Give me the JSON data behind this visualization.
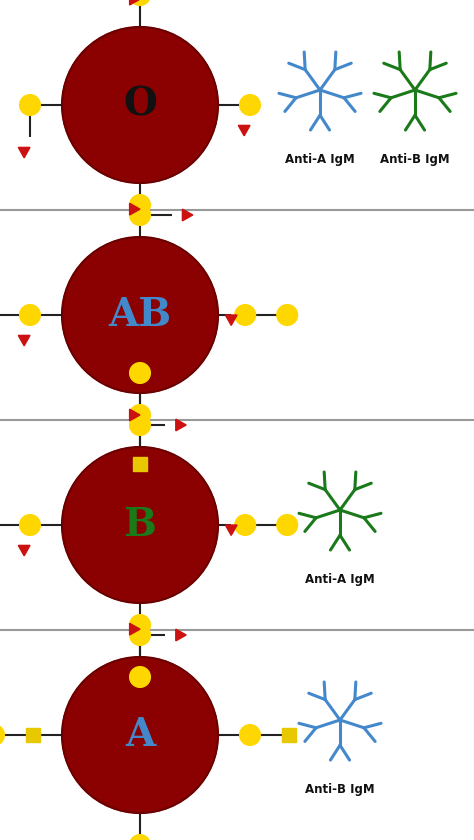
{
  "bg_color": "#ffffff",
  "cell_color": "#8B0000",
  "circle_color": "#FFD700",
  "square_color": "#E8C800",
  "triangle_color": "#CC1111",
  "line_color": "#222222",
  "blue_igm": "#4488CC",
  "green_igm": "#1A7A1A",
  "sections": [
    {
      "label": "O",
      "label_color": "#111111",
      "antibodies": [
        "Anti-A IgM",
        "Anti-B IgM"
      ],
      "ab_colors": [
        "#4488CC",
        "#1A7A1A"
      ]
    },
    {
      "label": "AB",
      "label_color": "#4488CC",
      "antibodies": [],
      "ab_colors": []
    },
    {
      "label": "B",
      "label_color": "#1A7A1A",
      "antibodies": [
        "Anti-A IgM"
      ],
      "ab_colors": [
        "#1A7A1A"
      ]
    },
    {
      "label": "A",
      "label_color": "#4488CC",
      "antibodies": [
        "Anti-B IgM"
      ],
      "ab_colors": [
        "#4488CC"
      ]
    }
  ],
  "divider_color": "#999999"
}
